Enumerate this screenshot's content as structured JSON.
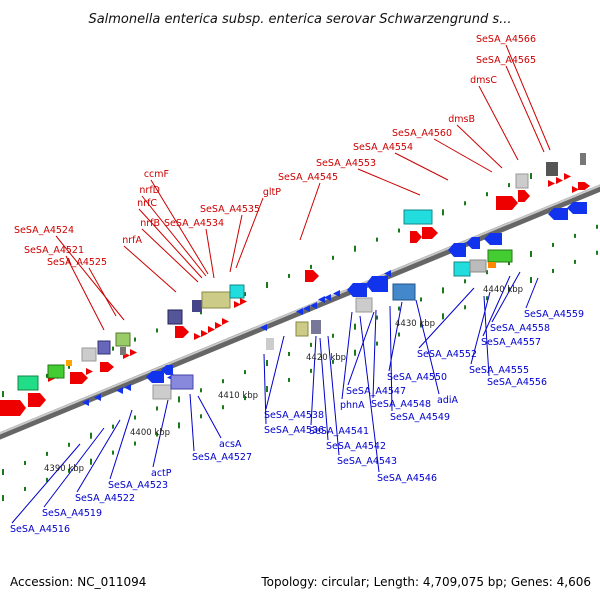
{
  "title": "Salmonella enterica subsp. enterica serovar Schwarzengrund s...",
  "footer": {
    "accession": "Accession: NC_011094",
    "summary": "Topology: circular; Length: 4,709,075 bp; Genes: 4,606"
  },
  "colors": {
    "forward_label": "#cc0000",
    "reverse_label": "#0000cc",
    "backbone": "#888888",
    "tick": "#1a7a1a"
  },
  "scale_ticks": [
    "4390 kbp",
    "4400 kbp",
    "4410 kbp",
    "4420 kbp",
    "4430 kbp",
    "4440 kbp"
  ],
  "forward_genes": [
    "SeSA_A4566",
    "SeSA_A4565",
    "dmsC",
    "dmsB",
    "SeSA_A4560",
    "SeSA_A4554",
    "SeSA_A4553",
    "SeSA_A4545",
    "gltP",
    "ccmF",
    "nrfD",
    "nrfC",
    "SeSA_A4535",
    "nrfB",
    "SeSA_A4534",
    "SeSA_A4524",
    "nrfA",
    "SeSA_A4521",
    "SeSA_A4525"
  ],
  "reverse_genes": [
    "SeSA_A4559",
    "SeSA_A4558",
    "SeSA_A4557",
    "SeSA_A4552",
    "SeSA_A4555",
    "SeSA_A4556",
    "SeSA_A4550",
    "adiA",
    "SeSA_A4547",
    "phnA",
    "SeSA_A4548",
    "SeSA_A4549",
    "SeSA_A4538",
    "SeSA_A4536",
    "SeSA_A4541",
    "SeSA_A4542",
    "SeSA_A4543",
    "SeSA_A4546",
    "acsA",
    "SeSA_A4527",
    "actP",
    "SeSA_A4523",
    "SeSA_A4522",
    "SeSA_A4519",
    "SeSA_A4516"
  ]
}
